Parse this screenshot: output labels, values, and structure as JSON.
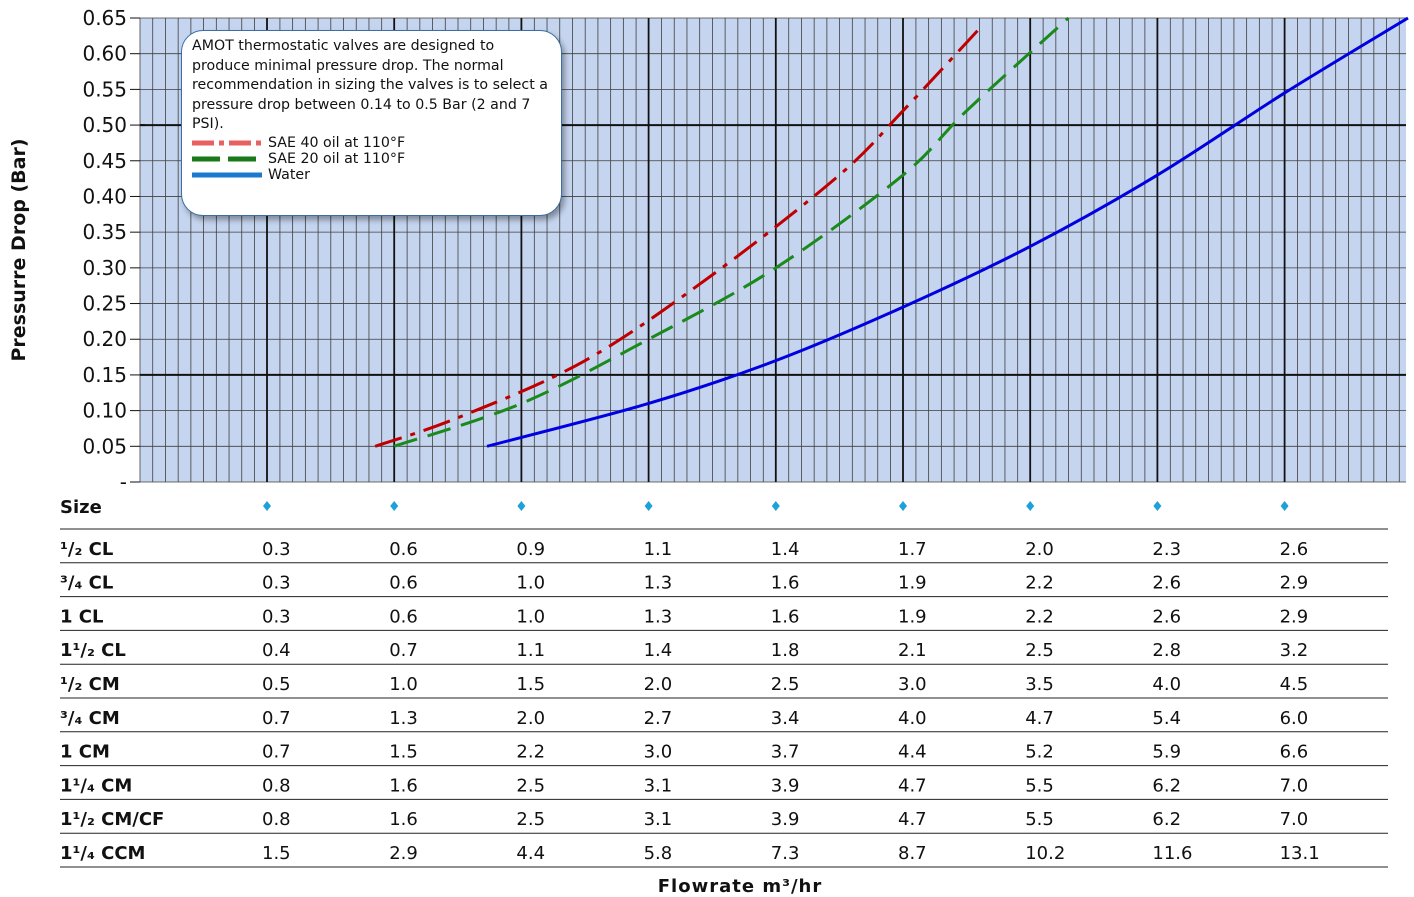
{
  "chart_data": {
    "type": "line",
    "ylabel": "Pressurre Drop (Bar)",
    "xlabel": "Flowrate m³/hr",
    "ylim": [
      0,
      0.65
    ],
    "y_ticks": [
      "-",
      "0.05",
      "0.10",
      "0.15",
      "0.20",
      "0.25",
      "0.30",
      "0.35",
      "0.40",
      "0.45",
      "0.50",
      "0.55",
      "0.60",
      "0.65"
    ],
    "x_units": "column position (0 = first size column, 8 = last size column)",
    "grid": true,
    "annotation": "AMOT thermostatic valves are designed to produce minimal pressure drop. The normal recommendation in sizing the valves is to select a pressure drop between 0.14 to 0.5 Bar (2 and 7 PSI).",
    "legend_placement": "top-left",
    "series": [
      {
        "name": "SAE 40 oil at 110°F",
        "color": "#c00000",
        "legend_color": "#e86060",
        "style": "dash-dot",
        "points": [
          [
            0.85,
            0.05
          ],
          [
            1.5,
            0.09
          ],
          [
            2.5,
            0.17
          ],
          [
            3.5,
            0.29
          ],
          [
            4.5,
            0.43
          ],
          [
            5.0,
            0.52
          ],
          [
            5.6,
            0.635
          ]
        ]
      },
      {
        "name": "SAE 20 oil at 110°F",
        "color": "#1a8a1a",
        "legend_color": "#1a7a1a",
        "style": "dash",
        "points": [
          [
            1.0,
            0.05
          ],
          [
            2.0,
            0.11
          ],
          [
            3.0,
            0.2
          ],
          [
            4.0,
            0.3
          ],
          [
            5.0,
            0.43
          ],
          [
            5.5,
            0.52
          ],
          [
            6.3,
            0.65
          ]
        ]
      },
      {
        "name": "Water",
        "color": "#0000e0",
        "legend_color": "#1a7ad0",
        "style": "solid",
        "points": [
          [
            1.73,
            0.05
          ],
          [
            3.0,
            0.11
          ],
          [
            4.0,
            0.17
          ],
          [
            5.0,
            0.245
          ],
          [
            6.0,
            0.33
          ],
          [
            7.0,
            0.43
          ],
          [
            8.0,
            0.545
          ],
          [
            8.97,
            0.65
          ]
        ]
      }
    ],
    "table": {
      "header": "Size",
      "rows": [
        {
          "label": "¹/₂ CL",
          "values": [
            "0.3",
            "0.6",
            "0.9",
            "1.1",
            "1.4",
            "1.7",
            "2.0",
            "2.3",
            "2.6"
          ]
        },
        {
          "label": "³/₄ CL",
          "values": [
            "0.3",
            "0.6",
            "1.0",
            "1.3",
            "1.6",
            "1.9",
            "2.2",
            "2.6",
            "2.9"
          ]
        },
        {
          "label": "1 CL",
          "values": [
            "0.3",
            "0.6",
            "1.0",
            "1.3",
            "1.6",
            "1.9",
            "2.2",
            "2.6",
            "2.9"
          ]
        },
        {
          "label": "1¹/₂ CL",
          "values": [
            "0.4",
            "0.7",
            "1.1",
            "1.4",
            "1.8",
            "2.1",
            "2.5",
            "2.8",
            "3.2"
          ]
        },
        {
          "label": "¹/₂ CM",
          "values": [
            "0.5",
            "1.0",
            "1.5",
            "2.0",
            "2.5",
            "3.0",
            "3.5",
            "4.0",
            "4.5"
          ]
        },
        {
          "label": "³/₄ CM",
          "values": [
            "0.7",
            "1.3",
            "2.0",
            "2.7",
            "3.4",
            "4.0",
            "4.7",
            "5.4",
            "6.0"
          ]
        },
        {
          "label": "1 CM",
          "values": [
            "0.7",
            "1.5",
            "2.2",
            "3.0",
            "3.7",
            "4.4",
            "5.2",
            "5.9",
            "6.6"
          ]
        },
        {
          "label": "1¹/₄ CM",
          "values": [
            "0.8",
            "1.6",
            "2.5",
            "3.1",
            "3.9",
            "4.7",
            "5.5",
            "6.2",
            "7.0"
          ]
        },
        {
          "label": "1¹/₂ CM/CF",
          "values": [
            "0.8",
            "1.6",
            "2.5",
            "3.1",
            "3.9",
            "4.7",
            "5.5",
            "6.2",
            "7.0"
          ]
        },
        {
          "label": "1¹/₄ CCM",
          "values": [
            "1.5",
            "2.9",
            "4.4",
            "5.8",
            "7.3",
            "8.7",
            "10.2",
            "11.6",
            "13.1"
          ]
        }
      ]
    }
  }
}
